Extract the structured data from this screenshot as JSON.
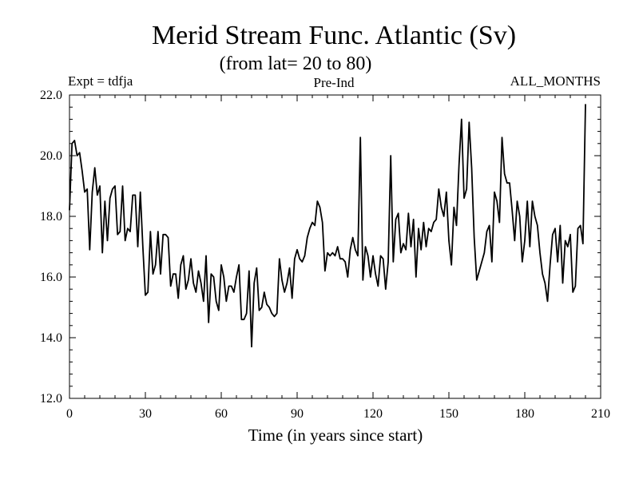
{
  "chart_data": {
    "type": "line",
    "title": "Merid Stream Func. Atlantic (Sv)",
    "subtitle": "(from lat= 20 to 80)",
    "annotation_left": "Expt = tdfja",
    "annotation_center": "Pre-Ind",
    "annotation_right": "ALL_MONTHS",
    "xlabel": "Time (in years since start)",
    "ylabel": "",
    "xlim": [
      0,
      210
    ],
    "ylim": [
      12.0,
      22.0
    ],
    "x_ticks": [
      "0",
      "30",
      "60",
      "90",
      "120",
      "150",
      "180",
      "210"
    ],
    "y_ticks": [
      "12.0",
      "14.0",
      "16.0",
      "18.0",
      "20.0",
      "22.0"
    ],
    "grid": false,
    "series": [
      {
        "name": "Merid Stream Func. Atlantic",
        "x_start": 0,
        "x_step": 1,
        "values": [
          18.2,
          20.4,
          20.5,
          20.0,
          20.1,
          19.5,
          18.8,
          18.9,
          16.9,
          18.8,
          19.6,
          18.7,
          19.0,
          16.8,
          18.5,
          17.2,
          18.6,
          18.9,
          19.0,
          17.4,
          17.5,
          19.0,
          17.2,
          17.6,
          17.5,
          18.7,
          18.7,
          17.0,
          18.8,
          17.0,
          15.4,
          15.5,
          17.5,
          16.1,
          16.4,
          17.5,
          16.1,
          17.4,
          17.4,
          17.3,
          15.7,
          16.1,
          16.1,
          15.3,
          16.4,
          16.7,
          15.6,
          15.9,
          16.6,
          15.8,
          15.5,
          16.2,
          15.8,
          15.2,
          16.7,
          14.5,
          16.1,
          16.0,
          15.2,
          14.9,
          16.4,
          16.0,
          15.2,
          15.7,
          15.7,
          15.5,
          16.0,
          16.4,
          14.6,
          14.6,
          14.8,
          16.2,
          13.7,
          15.8,
          16.3,
          14.9,
          15.0,
          15.5,
          15.1,
          15.0,
          14.8,
          14.7,
          14.8,
          16.6,
          15.9,
          15.5,
          15.8,
          16.3,
          15.3,
          16.6,
          16.9,
          16.6,
          16.5,
          16.7,
          17.3,
          17.6,
          17.8,
          17.7,
          18.5,
          18.3,
          17.8,
          16.2,
          16.8,
          16.7,
          16.8,
          16.7,
          17.0,
          16.6,
          16.6,
          16.5,
          16.0,
          16.9,
          17.3,
          16.9,
          16.7,
          20.6,
          15.9,
          17.0,
          16.7,
          16.0,
          16.7,
          16.1,
          15.7,
          16.7,
          16.6,
          15.6,
          16.5,
          20.0,
          16.5,
          17.9,
          18.1,
          16.8,
          17.1,
          16.9,
          18.1,
          17.0,
          17.9,
          16.0,
          17.6,
          16.9,
          17.8,
          17.0,
          17.6,
          17.5,
          17.8,
          17.9,
          18.9,
          18.3,
          18.0,
          18.8,
          17.2,
          16.4,
          18.3,
          17.7,
          19.7,
          21.2,
          18.6,
          18.9,
          21.1,
          19.6,
          17.3,
          15.9,
          16.2,
          16.5,
          16.8,
          17.5,
          17.7,
          16.5,
          18.8,
          18.5,
          17.8,
          20.6,
          19.4,
          19.1,
          19.1,
          18.2,
          17.2,
          18.5,
          18.0,
          16.5,
          17.2,
          18.5,
          17.0,
          18.5,
          18.0,
          17.7,
          16.8,
          16.1,
          15.8,
          15.2,
          16.4,
          17.4,
          17.6,
          16.5,
          17.7,
          15.8,
          17.2,
          17.0,
          17.4,
          15.5,
          15.7,
          17.6,
          17.7,
          17.1,
          21.7
        ]
      }
    ]
  }
}
